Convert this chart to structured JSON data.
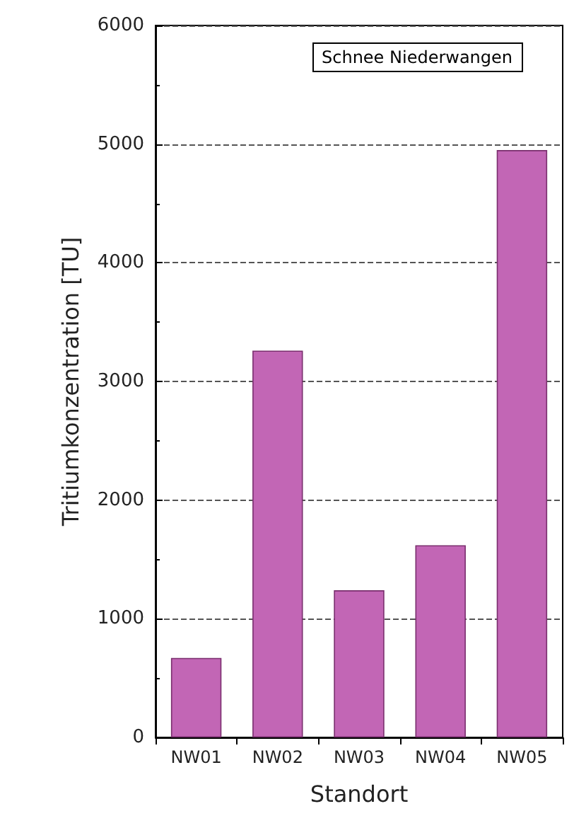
{
  "chart_data": {
    "type": "bar",
    "xlabel": "Standort",
    "ylabel": "Tritiumkonzentration [TU]",
    "annotations": [
      "Schnee Niederwangen"
    ],
    "categories": [
      "NW01",
      "NW02",
      "NW03",
      "NW04",
      "NW05"
    ],
    "values": [
      670,
      3260,
      1240,
      1620,
      4950
    ],
    "color": "#c266b5",
    "ylim": [
      0,
      6000
    ],
    "yticks": [
      0,
      1000,
      2000,
      3000,
      4000,
      5000,
      6000
    ],
    "grid": "y"
  }
}
